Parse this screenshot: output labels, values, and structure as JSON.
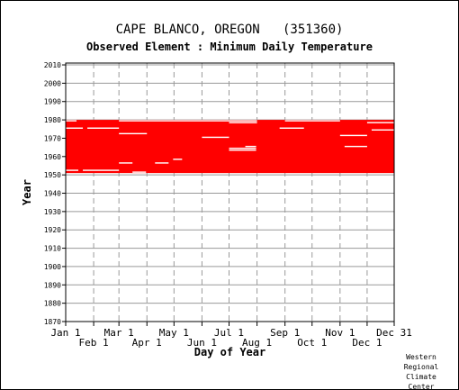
{
  "title": "CAPE BLANCO, OREGON   (351360)",
  "subtitle": "Observed Element : Minimum Daily Temperature",
  "credit": "Western\nRegional\nClimate\nCenter",
  "colors": {
    "data": "#ff0000",
    "grid": "#999999",
    "axis": "#000000"
  },
  "chart_data": {
    "type": "heatmap",
    "xlabel": "Day of Year",
    "ylabel": "Year",
    "xlim": [
      1,
      365
    ],
    "ylim": [
      1870,
      2011
    ],
    "grid": "dashed vertical at month starts, solid horizontal at decades",
    "x_ticks": [
      {
        "label": "Jan 1",
        "day": 1,
        "row": 1
      },
      {
        "label": "Feb 1",
        "day": 32,
        "row": 2
      },
      {
        "label": "Mar 1",
        "day": 60,
        "row": 1
      },
      {
        "label": "Apr 1",
        "day": 91,
        "row": 2
      },
      {
        "label": "May 1",
        "day": 121,
        "row": 1
      },
      {
        "label": "Jun 1",
        "day": 152,
        "row": 2
      },
      {
        "label": "Jul 1",
        "day": 182,
        "row": 1
      },
      {
        "label": "Aug 1",
        "day": 213,
        "row": 2
      },
      {
        "label": "Sep 1",
        "day": 244,
        "row": 1
      },
      {
        "label": "Oct 1",
        "day": 274,
        "row": 2
      },
      {
        "label": "Nov 1",
        "day": 305,
        "row": 1
      },
      {
        "label": "Dec 1",
        "day": 335,
        "row": 2
      },
      {
        "label": "Dec 31",
        "day": 365,
        "row": 1
      }
    ],
    "y_ticks": [
      2010,
      2000,
      1990,
      1980,
      1970,
      1960,
      1950,
      1940,
      1930,
      1920,
      1910,
      1900,
      1890,
      1880,
      1870
    ],
    "data_period": {
      "start_year": 1951,
      "end_year": 1979
    },
    "missing_segments": [
      {
        "year": 1952,
        "from": 1,
        "to": 15
      },
      {
        "year": 1952,
        "from": 20,
        "to": 60
      },
      {
        "year": 1951,
        "from": 75,
        "to": 90
      },
      {
        "year": 1956,
        "from": 60,
        "to": 75
      },
      {
        "year": 1956,
        "from": 100,
        "to": 115
      },
      {
        "year": 1958,
        "from": 120,
        "to": 130
      },
      {
        "year": 1965,
        "from": 200,
        "to": 212
      },
      {
        "year": 1965,
        "from": 310,
        "to": 335
      },
      {
        "year": 1964,
        "from": 182,
        "to": 212
      },
      {
        "year": 1963,
        "from": 182,
        "to": 212
      },
      {
        "year": 1970,
        "from": 152,
        "to": 182
      },
      {
        "year": 1971,
        "from": 305,
        "to": 335
      },
      {
        "year": 1972,
        "from": 60,
        "to": 91
      },
      {
        "year": 1974,
        "from": 340,
        "to": 365
      },
      {
        "year": 1975,
        "from": 1,
        "to": 20
      },
      {
        "year": 1975,
        "from": 25,
        "to": 60
      },
      {
        "year": 1975,
        "from": 238,
        "to": 265
      },
      {
        "year": 1978,
        "from": 182,
        "to": 213
      },
      {
        "year": 1978,
        "from": 335,
        "to": 365
      },
      {
        "year": 1979,
        "from": 1,
        "to": 13
      },
      {
        "year": 1979,
        "from": 60,
        "to": 213
      },
      {
        "year": 1979,
        "from": 244,
        "to": 305
      }
    ]
  }
}
